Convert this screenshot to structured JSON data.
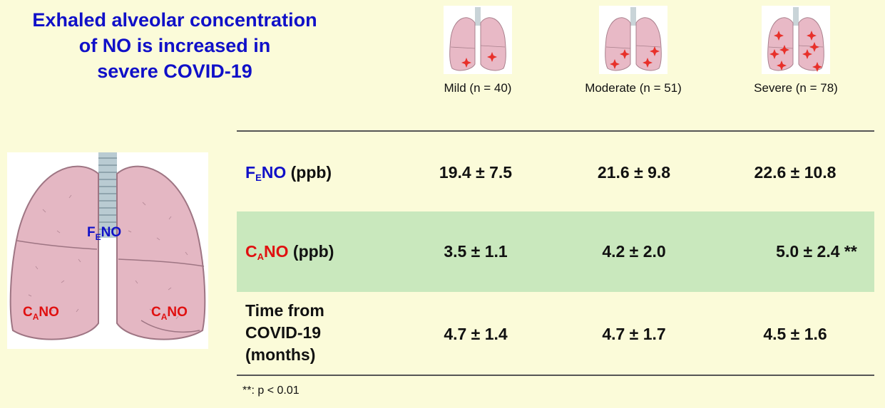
{
  "title": {
    "line1": "Exhaled alveolar concentration",
    "line2": "of NO is increased in",
    "line3": "severe COVID-19"
  },
  "colors": {
    "title": "#1010c8",
    "fe_symbol": "#1010c8",
    "ca_symbol": "#e01010",
    "band": "#c9e8bd",
    "background": "#fbfbd9"
  },
  "illustration": {
    "fe_label": {
      "main": "F",
      "sub": "E",
      "suffix": "NO"
    },
    "ca_label_left": {
      "main": "C",
      "sub": "A",
      "suffix": "NO"
    },
    "ca_label_right": {
      "main": "C",
      "sub": "A",
      "suffix": "NO"
    }
  },
  "columns": [
    {
      "label": "Mild (n = 40)",
      "icon": "lungs-mild-icon"
    },
    {
      "label": "Moderate (n = 51)",
      "icon": "lungs-moderate-icon"
    },
    {
      "label": "Severe (n = 78)",
      "icon": "lungs-severe-icon"
    }
  ],
  "rows": [
    {
      "symbol_main": "F",
      "symbol_sub": "E",
      "symbol_suffix": "NO",
      "unit": " (ppb)",
      "values": [
        "19.4 ± 7.5",
        "21.6 ± 9.8",
        "22.6 ± 10.8"
      ]
    },
    {
      "symbol_main": "C",
      "symbol_sub": "A",
      "symbol_suffix": "NO",
      "unit": " (ppb)",
      "values": [
        "3.5 ± 1.1",
        "4.2 ± 2.0",
        "5.0 ± 2.4 **"
      ]
    },
    {
      "label_lines": [
        "Time from",
        "COVID-19",
        "(months)"
      ],
      "values": [
        "4.7 ± 1.4",
        "4.7 ± 1.7",
        "4.5 ± 1.6"
      ]
    }
  ],
  "footnote": "**: p < 0.01"
}
